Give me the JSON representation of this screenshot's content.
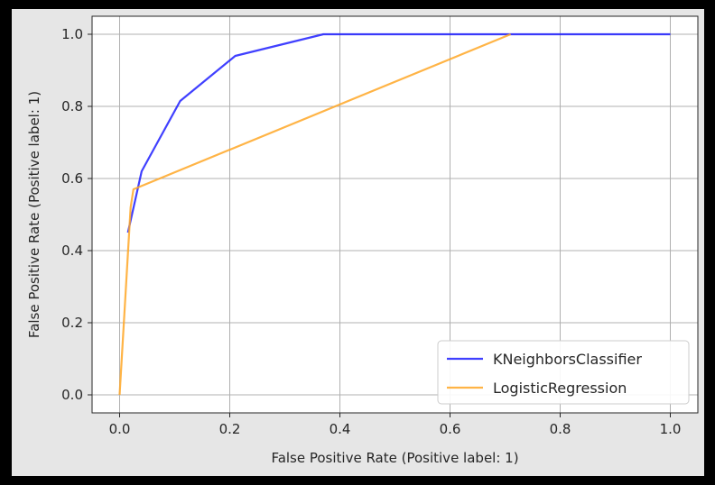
{
  "chart_data": {
    "type": "line",
    "title": "",
    "xlabel": "False Positive Rate (Positive label: 1)",
    "ylabel": "False Positive Rate (Positive label: 1)",
    "xlim": [
      -0.05,
      1.05
    ],
    "ylim": [
      -0.05,
      1.05
    ],
    "xticks": [
      0.0,
      0.2,
      0.4,
      0.6,
      0.8,
      1.0
    ],
    "xtick_labels": [
      "0.0",
      "0.2",
      "0.4",
      "0.6",
      "0.8",
      "1.0"
    ],
    "yticks": [
      0.0,
      0.2,
      0.4,
      0.6,
      0.8,
      1.0
    ],
    "ytick_labels": [
      "0.0",
      "0.2",
      "0.4",
      "0.6",
      "0.8",
      "1.0"
    ],
    "grid": true,
    "legend_position": "lower-right",
    "series": [
      {
        "name": "KNeighborsClassifier",
        "color": "#1f1fff",
        "x": [
          0.015,
          0.04,
          0.11,
          0.21,
          0.37,
          1.0
        ],
        "y": [
          0.45,
          0.62,
          0.815,
          0.94,
          1.0,
          1.0
        ]
      },
      {
        "name": "LogisticRegression",
        "color": "#ffa726",
        "x": [
          0.0,
          0.02,
          0.025,
          0.71
        ],
        "y": [
          0.0,
          0.52,
          0.57,
          1.0
        ]
      }
    ]
  }
}
